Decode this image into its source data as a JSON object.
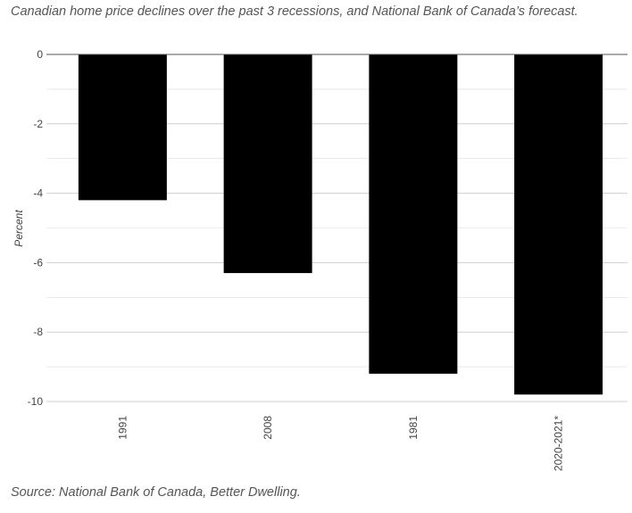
{
  "chart_data": {
    "type": "bar",
    "title": "Canadian home price declines over the past 3 recessions, and National Bank of Canada’s forecast.",
    "source": "Source: National Bank of Canada, Better Dwelling.",
    "categories": [
      "1991",
      "2008",
      "1981",
      "2020-2021*"
    ],
    "values": [
      -4.2,
      -6.3,
      -9.2,
      -9.8
    ],
    "xlabel": "",
    "ylabel": "Percent",
    "ylim": [
      -10,
      0
    ],
    "yticks": [
      0,
      -2,
      -4,
      -6,
      -8,
      -10
    ],
    "grid": true,
    "bar_color": "#000000",
    "grid_color": "#dddddd"
  }
}
